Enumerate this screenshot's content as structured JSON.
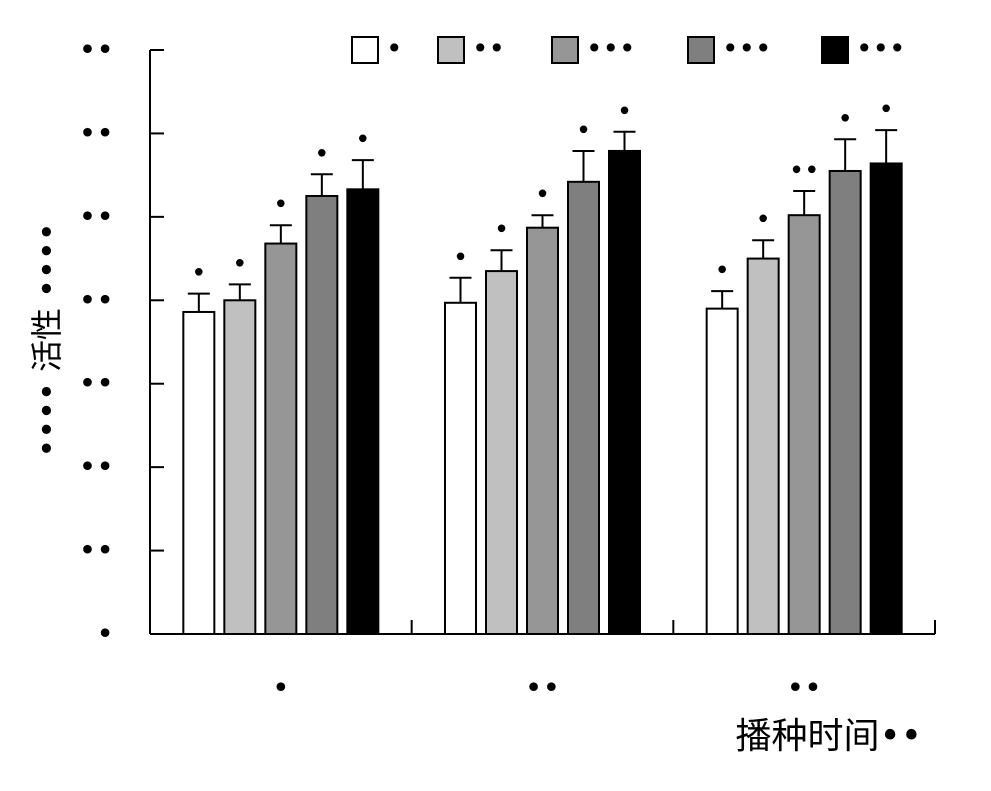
{
  "chart_data": {
    "type": "bar",
    "ylabel": "•••• 活性 ••••",
    "xlabel": "播种时间••",
    "y_ticks": [
      "•",
      "••",
      "••",
      "••",
      "••",
      "••",
      "••",
      "••"
    ],
    "categories": [
      "•",
      "••",
      "••"
    ],
    "ylim": [
      0,
      7
    ],
    "grid": false,
    "legend_position": "top",
    "series": [
      {
        "name": "•",
        "color": "#ffffff",
        "values": [
          3.86,
          3.97,
          3.9
        ],
        "errors": [
          0.22,
          0.3,
          0.21
        ],
        "sig": [
          "•",
          "•",
          "•"
        ]
      },
      {
        "name": "••",
        "color": "#c0c0c0",
        "values": [
          4.0,
          4.35,
          4.5
        ],
        "errors": [
          0.19,
          0.25,
          0.22
        ],
        "sig": [
          "•",
          "•",
          "•"
        ]
      },
      {
        "name": "•••",
        "color": "#969696",
        "values": [
          4.68,
          4.87,
          5.02
        ],
        "errors": [
          0.22,
          0.15,
          0.29
        ],
        "sig": [
          "•",
          "•",
          "••"
        ]
      },
      {
        "name": "•••",
        "color": "#7f7f7f",
        "values": [
          5.25,
          5.42,
          5.55
        ],
        "errors": [
          0.26,
          0.37,
          0.38
        ],
        "sig": [
          "•",
          "•",
          "•"
        ]
      },
      {
        "name": "•••",
        "color": "#000000",
        "values": [
          5.33,
          5.79,
          5.64
        ],
        "errors": [
          0.35,
          0.23,
          0.4
        ],
        "sig": [
          "•",
          "•",
          "•"
        ]
      }
    ]
  }
}
